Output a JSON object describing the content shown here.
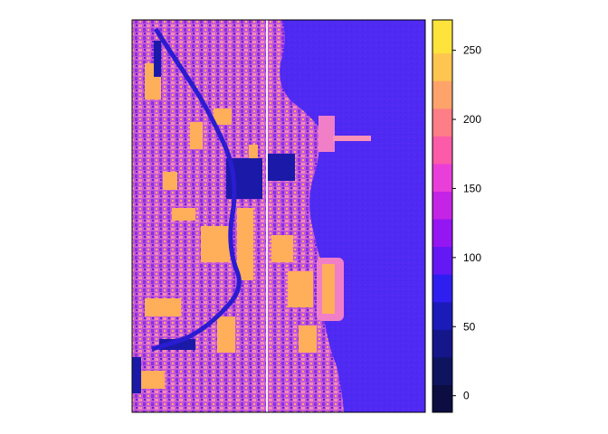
{
  "chart_data": {
    "type": "heatmap",
    "title": "",
    "xlabel": "",
    "ylabel": "",
    "axes_shown": false,
    "colorbar": {
      "ticks": [
        0,
        50,
        100,
        150,
        200,
        250
      ],
      "tick_labels": [
        "0",
        "50",
        "100",
        "150",
        "200",
        "250"
      ],
      "range": [
        -12,
        272
      ],
      "breaks": [
        -12,
        8,
        28,
        48,
        68,
        88,
        108,
        128,
        148,
        168,
        188,
        208,
        228,
        248,
        272
      ],
      "colors": [
        "#0c0d40",
        "#0f145f",
        "#14168a",
        "#1a1bb8",
        "#2f1ef0",
        "#6318f5",
        "#9416f2",
        "#c424e6",
        "#ea3ed8",
        "#fb5ba8",
        "#fd7e87",
        "#fea46a",
        "#fec550",
        "#fee33c",
        "#fffd52"
      ]
    },
    "image": {
      "description_colors": {
        "water": "#4a27f2",
        "urban_high": "#ffae5a",
        "urban_mid": "#d55ad4",
        "urban_low": "#7b2fe0",
        "shadow": "#1b1aa8"
      }
    }
  }
}
